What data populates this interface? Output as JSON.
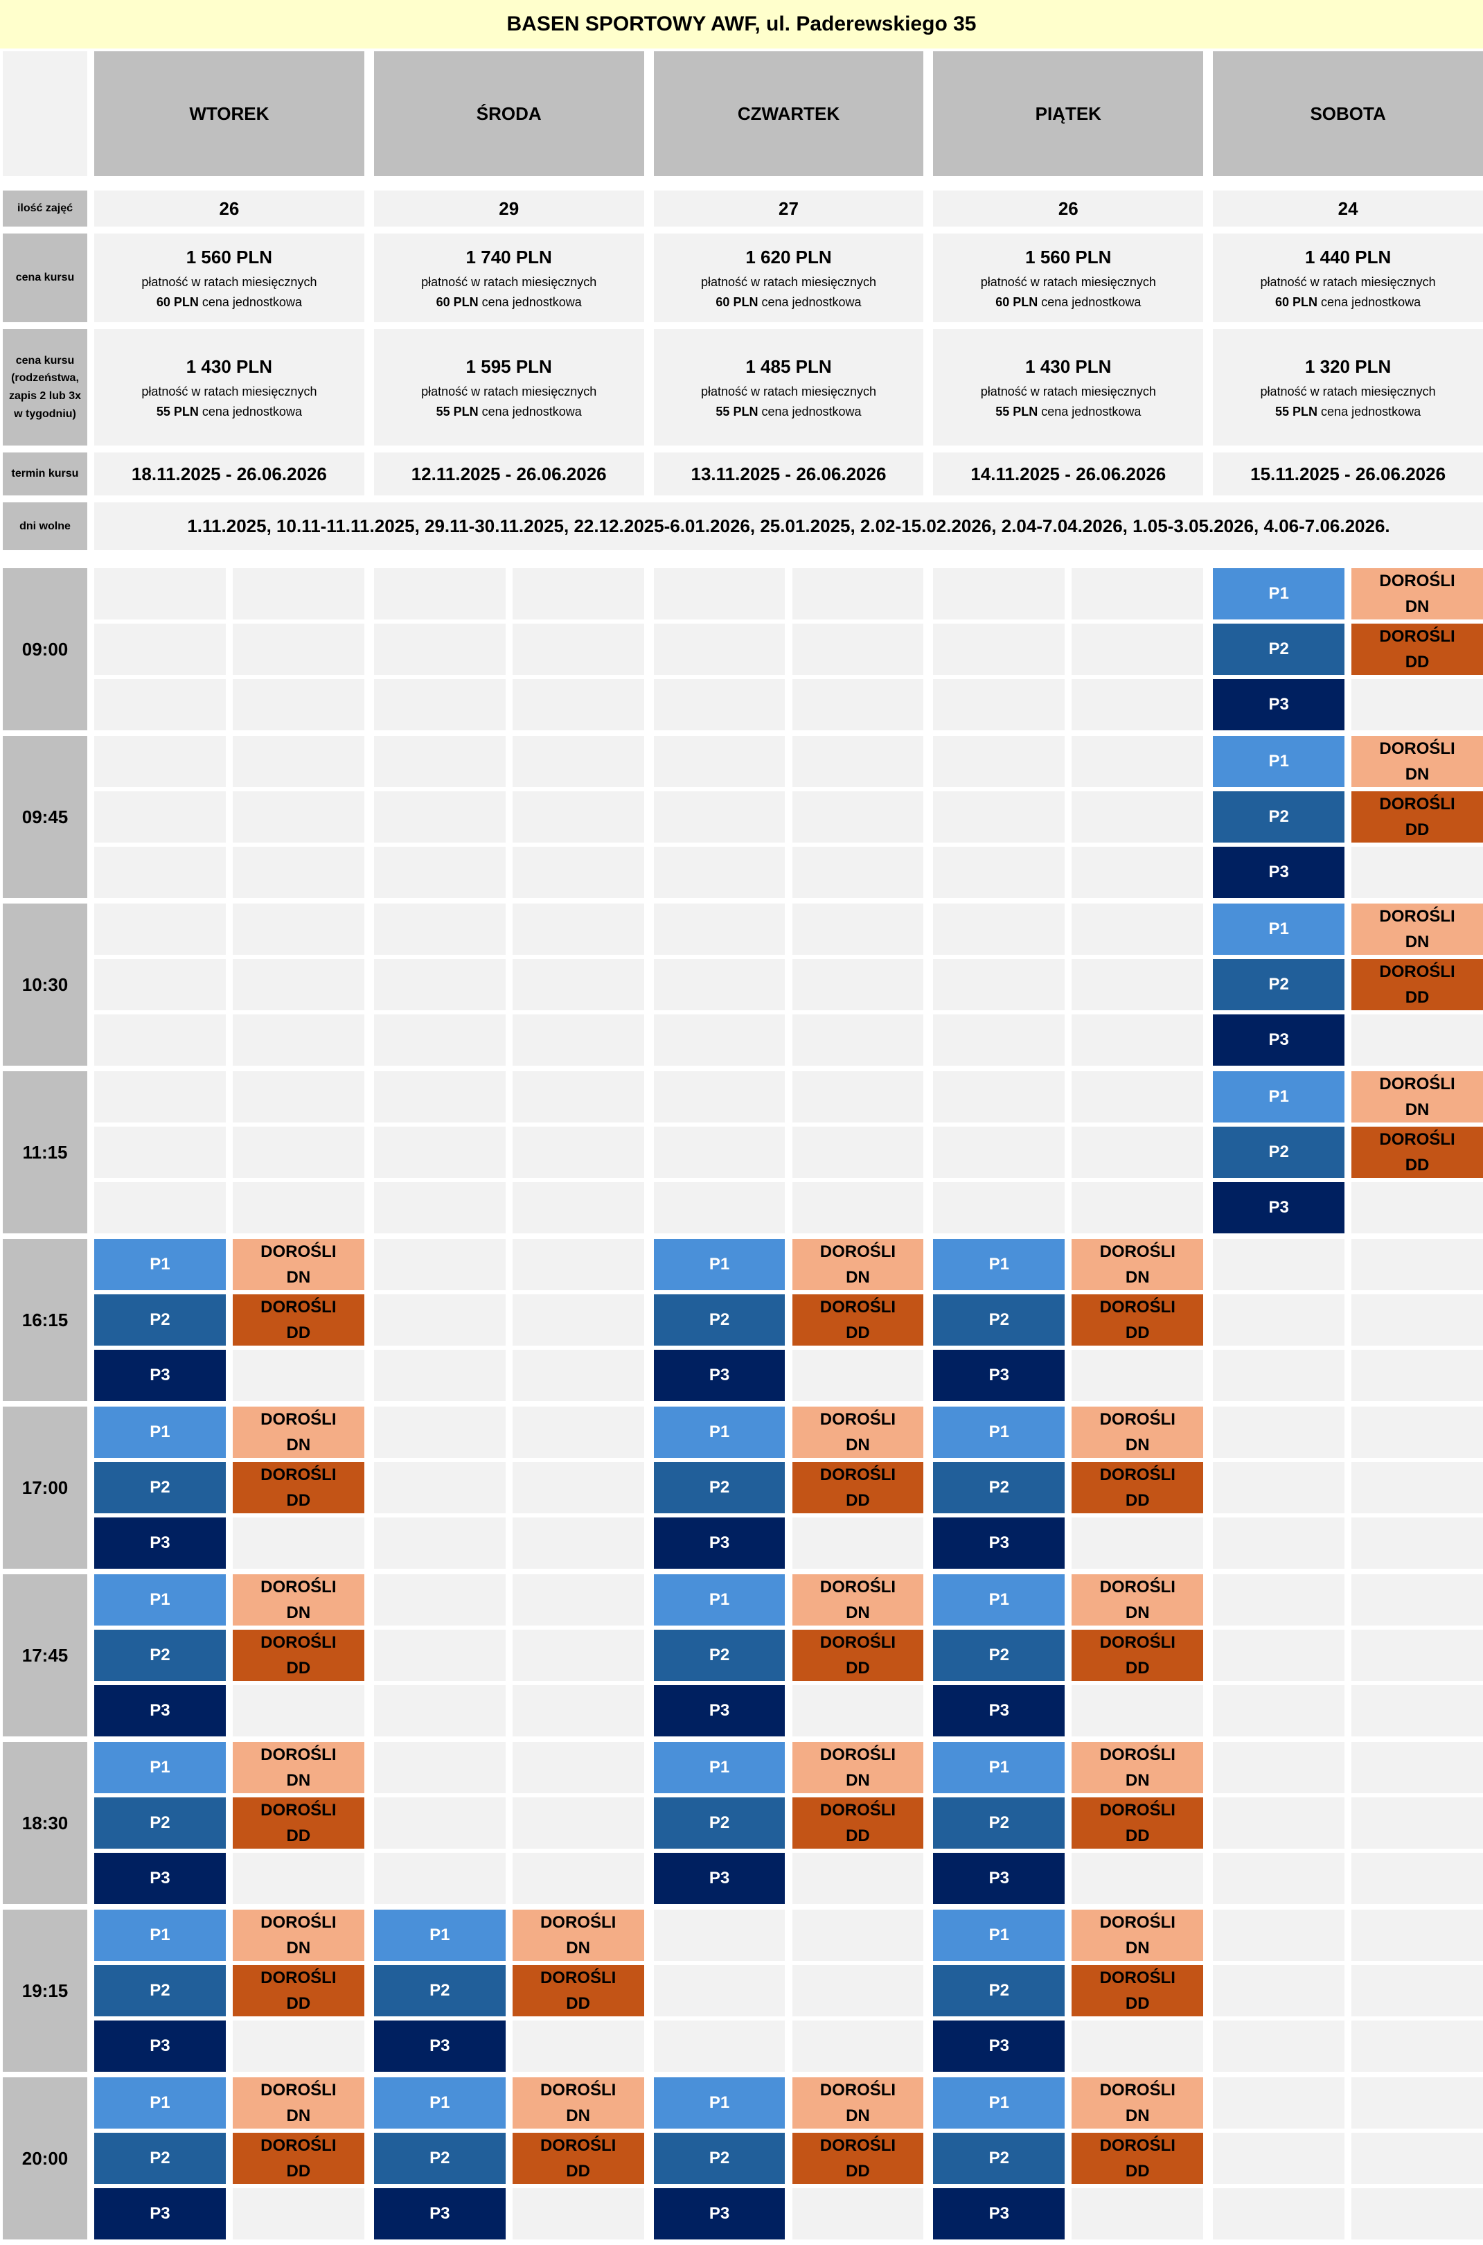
{
  "header": {
    "title": "BASEN SPORTOWY AWF, ul. Paderewskiego 35"
  },
  "days": [
    "WTOREK",
    "ŚRODA",
    "CZWARTEK",
    "PIĄTEK",
    "SOBOTA"
  ],
  "info": {
    "count": {
      "label": "ilość zajęć",
      "values": [
        26,
        29,
        27,
        26,
        24
      ]
    },
    "price": {
      "label": "cena kursu",
      "cells": [
        {
          "price": "1 560 PLN",
          "note": "płatność w ratach miesięcznych",
          "unit": "60 PLN",
          "unit_note": "cena jednostkowa"
        },
        {
          "price": "1 740 PLN",
          "note": "płatność w ratach miesięcznych",
          "unit": "60 PLN",
          "unit_note": "cena jednostkowa"
        },
        {
          "price": "1 620 PLN",
          "note": "płatność w ratach miesięcznych",
          "unit": "60 PLN",
          "unit_note": "cena jednostkowa"
        },
        {
          "price": "1 560 PLN",
          "note": "płatność w ratach miesięcznych",
          "unit": "60 PLN",
          "unit_note": "cena jednostkowa"
        },
        {
          "price": "1 440 PLN",
          "note": "płatność w ratach miesięcznych",
          "unit": "60 PLN",
          "unit_note": "cena jednostkowa"
        }
      ]
    },
    "price_sibling": {
      "label": "cena kursu (rodzeństwa, zapis 2 lub 3x w tygodniu)",
      "cells": [
        {
          "price": "1 430 PLN",
          "note": "płatność w ratach miesięcznych",
          "unit": "55 PLN",
          "unit_note": "cena jednostkowa"
        },
        {
          "price": "1 595 PLN",
          "note": "płatność w ratach miesięcznych",
          "unit": "55 PLN",
          "unit_note": "cena jednostkowa"
        },
        {
          "price": "1 485 PLN",
          "note": "płatność w ratach miesięcznych",
          "unit": "55 PLN",
          "unit_note": "cena jednostkowa"
        },
        {
          "price": "1 430 PLN",
          "note": "płatność w ratach miesięcznych",
          "unit": "55 PLN",
          "unit_note": "cena jednostkowa"
        },
        {
          "price": "1 320 PLN",
          "note": "płatność w ratach miesięcznych",
          "unit": "55 PLN",
          "unit_note": "cena jednostkowa"
        }
      ]
    },
    "term": {
      "label": "termin kursu",
      "values": [
        "18.11.2025 - 26.06.2026",
        "12.11.2025 - 26.06.2026",
        "13.11.2025 - 26.06.2026",
        "14.11.2025 - 26.06.2026",
        "15.11.2025 - 26.06.2026"
      ]
    },
    "free_days": {
      "label": "dni wolne",
      "text": "1.11.2025, 10.11-11.11.2025, 29.11-30.11.2025, 22.12.2025-6.01.2026, 25.01.2025, 2.02-15.02.2026, 2.04-7.04.2026, 1.05-3.05.2026, 4.06-7.06.2026."
    }
  },
  "schedule": [
    {
      "time": "09:00",
      "days": [
        null,
        null,
        null,
        null,
        [
          [
            "P1",
            "DOROŚLI\nDN"
          ],
          [
            "P2",
            "DOROŚLI\nDD"
          ],
          [
            "P3"
          ]
        ]
      ]
    },
    {
      "time": "09:45",
      "days": [
        null,
        null,
        null,
        null,
        [
          [
            "P1",
            "DOROŚLI\nDN"
          ],
          [
            "P2",
            "DOROŚLI\nDD"
          ],
          [
            "P3"
          ]
        ]
      ]
    },
    {
      "time": "10:30",
      "days": [
        null,
        null,
        null,
        null,
        [
          [
            "P1",
            "DOROŚLI\nDN"
          ],
          [
            "P2",
            "DOROŚLI\nDD"
          ],
          [
            "P3"
          ]
        ]
      ]
    },
    {
      "time": "11:15",
      "days": [
        null,
        null,
        null,
        null,
        [
          [
            "P1",
            "DOROŚLI\nDN"
          ],
          [
            "P2",
            "DOROŚLI\nDD"
          ],
          [
            "P3"
          ]
        ]
      ]
    },
    {
      "time": "16:15",
      "days": [
        [
          [
            "P1",
            "DOROŚLI\nDN"
          ],
          [
            "P2",
            "DOROŚLI\nDD"
          ],
          [
            "P3"
          ]
        ],
        null,
        [
          [
            "P1",
            "DOROŚLI\nDN"
          ],
          [
            "P2",
            "DOROŚLI\nDD"
          ],
          [
            "P3"
          ]
        ],
        [
          [
            "P1",
            "DOROŚLI\nDN"
          ],
          [
            "P2",
            "DOROŚLI\nDD"
          ],
          [
            "P3"
          ]
        ],
        null
      ]
    },
    {
      "time": "17:00",
      "days": [
        [
          [
            "P1",
            "DOROŚLI\nDN"
          ],
          [
            "P2",
            "DOROŚLI\nDD"
          ],
          [
            "P3"
          ]
        ],
        null,
        [
          [
            "P1",
            "DOROŚLI\nDN"
          ],
          [
            "P2",
            "DOROŚLI\nDD"
          ],
          [
            "P3"
          ]
        ],
        [
          [
            "P1",
            "DOROŚLI\nDN"
          ],
          [
            "P2",
            "DOROŚLI\nDD"
          ],
          [
            "P3"
          ]
        ],
        null
      ]
    },
    {
      "time": "17:45",
      "days": [
        [
          [
            "P1",
            "DOROŚLI\nDN"
          ],
          [
            "P2",
            "DOROŚLI\nDD"
          ],
          [
            "P3"
          ]
        ],
        null,
        [
          [
            "P1",
            "DOROŚLI\nDN"
          ],
          [
            "P2",
            "DOROŚLI\nDD"
          ],
          [
            "P3"
          ]
        ],
        [
          [
            "P1",
            "DOROŚLI\nDN"
          ],
          [
            "P2",
            "DOROŚLI\nDD"
          ],
          [
            "P3"
          ]
        ],
        null
      ]
    },
    {
      "time": "18:30",
      "days": [
        [
          [
            "P1",
            "DOROŚLI\nDN"
          ],
          [
            "P2",
            "DOROŚLI\nDD"
          ],
          [
            "P3"
          ]
        ],
        null,
        [
          [
            "P1",
            "DOROŚLI\nDN"
          ],
          [
            "P2",
            "DOROŚLI\nDD"
          ],
          [
            "P3"
          ]
        ],
        [
          [
            "P1",
            "DOROŚLI\nDN"
          ],
          [
            "P2",
            "DOROŚLI\nDD"
          ],
          [
            "P3"
          ]
        ],
        null
      ]
    },
    {
      "time": "19:15",
      "days": [
        [
          [
            "P1",
            "DOROŚLI\nDN"
          ],
          [
            "P2",
            "DOROŚLI\nDD"
          ],
          [
            "P3"
          ]
        ],
        [
          [
            "P1",
            "DOROŚLI\nDN"
          ],
          [
            "P2",
            "DOROŚLI\nDD"
          ],
          [
            "P3"
          ]
        ],
        null,
        [
          [
            "P1",
            "DOROŚLI\nDN"
          ],
          [
            "P2",
            "DOROŚLI\nDD"
          ],
          [
            "P3"
          ]
        ],
        null
      ]
    },
    {
      "time": "20:00",
      "days": [
        [
          [
            "P1",
            "DOROŚLI\nDN"
          ],
          [
            "P2",
            "DOROŚLI\nDD"
          ],
          [
            "P3"
          ]
        ],
        [
          [
            "P1",
            "DOROŚLI\nDN"
          ],
          [
            "P2",
            "DOROŚLI\nDD"
          ],
          [
            "P3"
          ]
        ],
        [
          [
            "P1",
            "DOROŚLI\nDN"
          ],
          [
            "P2",
            "DOROŚLI\nDD"
          ],
          [
            "P3"
          ]
        ],
        [
          [
            "P1",
            "DOROŚLI\nDN"
          ],
          [
            "P2",
            "DOROŚLI\nDD"
          ],
          [
            "P3"
          ]
        ],
        null
      ]
    }
  ]
}
